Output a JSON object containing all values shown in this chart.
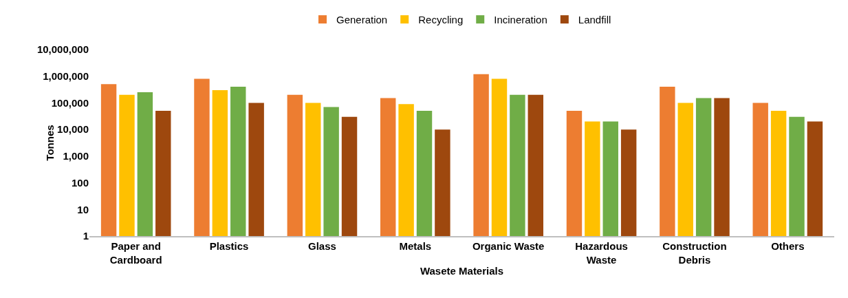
{
  "chart_data": {
    "type": "bar",
    "xlabel": "Wasete Materials",
    "ylabel": "Tonnes",
    "categories": [
      "Paper and Cardboard",
      "Plastics",
      "Glass",
      "Metals",
      "Organic Waste",
      "Hazardous Waste",
      "Construction Debris",
      "Others"
    ],
    "series": [
      {
        "name": "Generation",
        "color": "#ed7d31",
        "values": [
          500000,
          800000,
          200000,
          150000,
          1200000,
          50000,
          400000,
          100000
        ]
      },
      {
        "name": "Recycling",
        "color": "#ffc000",
        "values": [
          200000,
          300000,
          100000,
          90000,
          800000,
          20000,
          100000,
          50000
        ]
      },
      {
        "name": "Incineration",
        "color": "#70ad47",
        "values": [
          250000,
          400000,
          70000,
          50000,
          200000,
          20000,
          150000,
          30000
        ]
      },
      {
        "name": "Landfill",
        "color": "#9e480e",
        "values": [
          50000,
          100000,
          30000,
          10000,
          200000,
          10000,
          150000,
          20000
        ]
      }
    ],
    "log": "y",
    "ylim": [
      1,
      10000000
    ],
    "yticks": [
      1,
      10,
      100,
      {
        "value": 1000,
        "label": "1,000"
      },
      {
        "value": 10000,
        "label": "10,000"
      },
      {
        "value": 100000,
        "label": "100,000"
      },
      {
        "value": 1000000,
        "label": "1,000,000"
      },
      {
        "value": 10000000,
        "label": "10,000,000"
      }
    ],
    "grid": false,
    "legend": "top"
  }
}
